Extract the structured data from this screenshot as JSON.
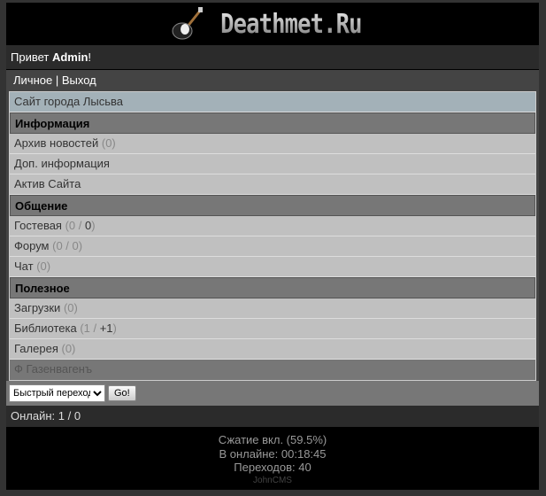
{
  "logo": {
    "text": "Deathmet.Ru",
    "icon": "guitar-icon"
  },
  "greeting": {
    "prefix": "Привет ",
    "user": "Admin",
    "suffix": "!"
  },
  "user_links": {
    "personal": "Личное",
    "sep": " | ",
    "logout": "Выход"
  },
  "site_link": "Сайт города Лысьва",
  "sections": [
    {
      "title": "Информация",
      "items": [
        {
          "label": "Архив новостей",
          "count": "(0)"
        },
        {
          "label": "Доп. информация",
          "count": ""
        },
        {
          "label": "Актив Сайта",
          "count": ""
        }
      ]
    },
    {
      "title": "Общение",
      "items": [
        {
          "label": "Гостевая",
          "count": "(0 / ",
          "count2": "0",
          "count3": ")"
        },
        {
          "label": "Форум",
          "count": "(0 / 0)"
        },
        {
          "label": "Чат",
          "count": "(0)"
        }
      ]
    },
    {
      "title": "Полезное",
      "items": [
        {
          "label": "Загрузки",
          "count": "(0)"
        },
        {
          "label": "Библиотека",
          "count": "(1 / ",
          "count2": "+1",
          "count3": ")"
        },
        {
          "label": "Галерея",
          "count": "(0)"
        }
      ]
    }
  ],
  "user_row": "Ф Газенвагенъ",
  "quick_jump": {
    "selected": "Быстрый переход",
    "go": "Go!"
  },
  "online": "Онлайн: 1 / 0",
  "footer": {
    "compression": "Сжатие вкл. (59.5%)",
    "online_time": "В онлайне: 00:18:45",
    "transitions": "Переходов: 40",
    "cms": "JohnCMS"
  }
}
